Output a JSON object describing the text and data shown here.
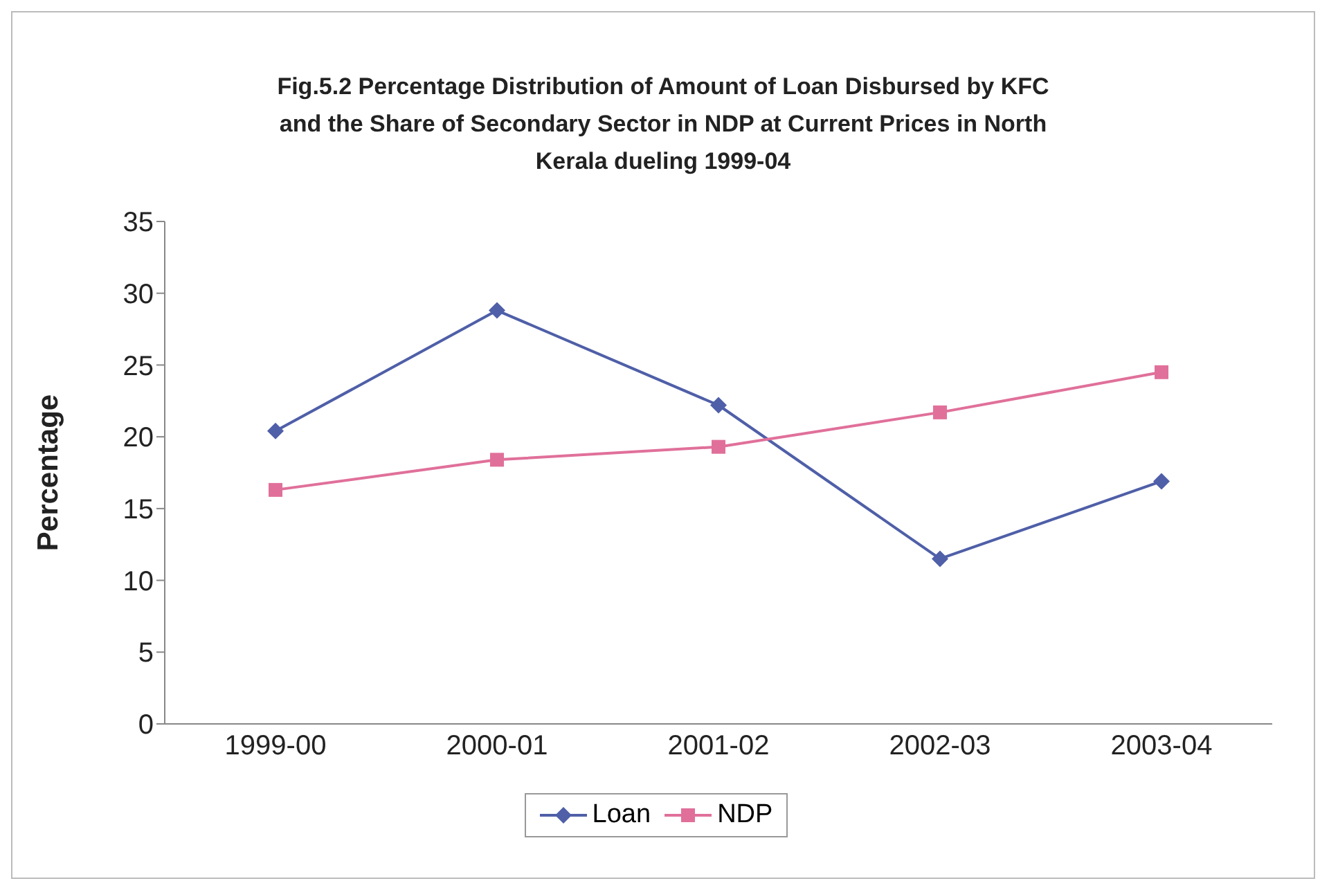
{
  "chart_data": {
    "type": "line",
    "title": "Fig.5.2 Percentage Distribution of Amount of Loan Disbursed by KFC and the Share of Secondary Sector in NDP at Current Prices  in North Kerala dueling 1999-04",
    "ylabel": "Percentage",
    "categories": [
      "1999-00",
      "2000-01",
      "2001-02",
      "2002-03",
      "2003-04"
    ],
    "series": [
      {
        "name": "Loan",
        "color": "#4f5fa8",
        "values": [
          20.4,
          28.8,
          22.2,
          11.5,
          16.9
        ],
        "marker": "diamond"
      },
      {
        "name": "NDP",
        "color": "#e0709a",
        "values": [
          16.3,
          18.4,
          19.3,
          21.7,
          24.5
        ],
        "marker": "square"
      }
    ],
    "ylim": [
      0,
      35
    ],
    "yticks": [
      0,
      5,
      10,
      15,
      20,
      25,
      30,
      35
    ],
    "grid": false,
    "legend": "bottom"
  }
}
